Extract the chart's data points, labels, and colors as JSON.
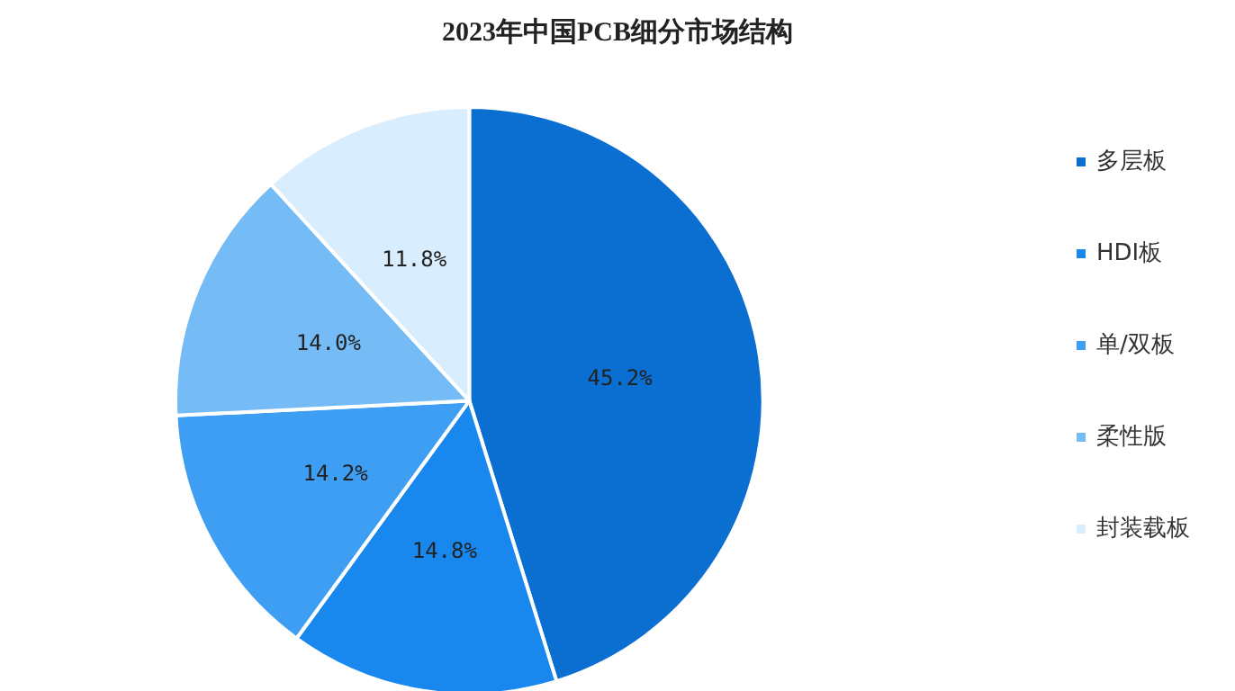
{
  "chart_data": {
    "type": "pie",
    "title": "2023年中国PCB细分市场结构",
    "categories": [
      "多层板",
      "HDI板",
      "单/双板",
      "柔性版",
      "封装载板"
    ],
    "values": [
      45.2,
      14.8,
      14.2,
      14.0,
      11.8
    ],
    "value_labels": [
      "45.2%",
      "14.8%",
      "14.2%",
      "14.0%",
      "11.8%"
    ],
    "colors": [
      "#0b6fd2",
      "#1888ef",
      "#3e9ef3",
      "#75bbf6",
      "#d8edfd"
    ],
    "legend": "right"
  }
}
